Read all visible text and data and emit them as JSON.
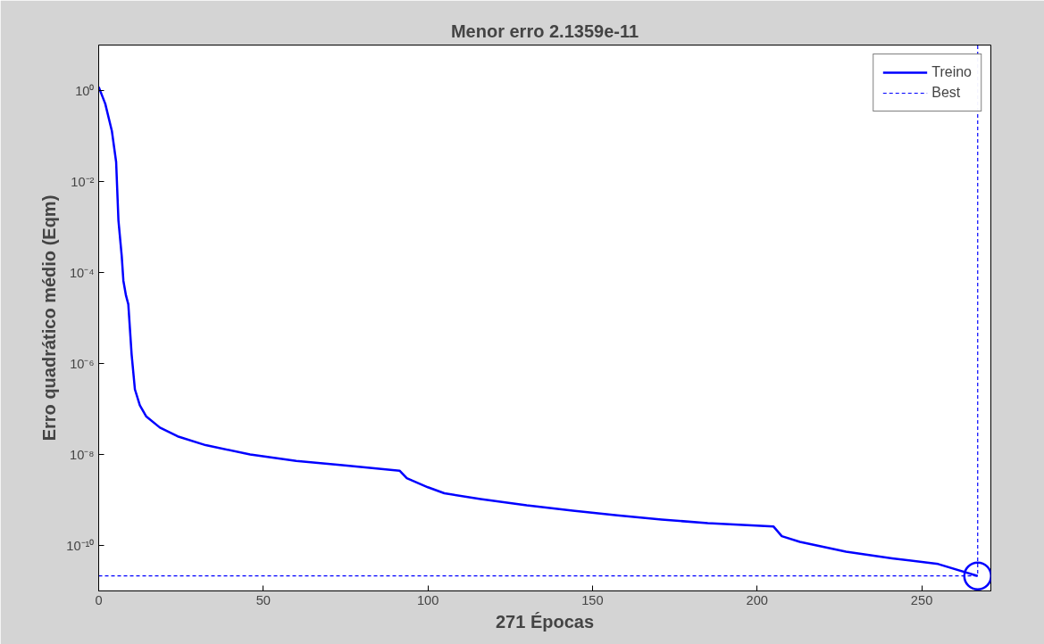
{
  "chart_data": {
    "type": "line",
    "title": "Menor erro 2.1359e-11",
    "xlabel": "271 Épocas",
    "ylabel": "Erro quadrático médio (Eqm)",
    "log": "y",
    "grid": false,
    "legend": "top right",
    "xlim": [
      0,
      271
    ],
    "xticks": [
      0,
      50,
      100,
      150,
      200,
      250
    ],
    "ylim": [
      1e-11,
      10
    ],
    "yticks": [
      {
        "value": 1e-10,
        "label": "10⁻¹⁰"
      },
      {
        "value": 1e-08,
        "label": "10⁻⁸"
      },
      {
        "value": 1e-06,
        "label": "10⁻⁶"
      },
      {
        "value": 0.0001,
        "label": "10⁻⁴"
      },
      {
        "value": 0.01,
        "label": "10⁻²"
      },
      {
        "value": 1,
        "label": "10⁰"
      }
    ],
    "series": [
      {
        "name": "Treino",
        "color": "#0000ff",
        "line_style": "solid",
        "marker": "none",
        "x": [
          0,
          2,
          4,
          5.3,
          6,
          7,
          7.5,
          8.3,
          9,
          10,
          11,
          12.5,
          14.4,
          18.6,
          24,
          32.5,
          46,
          60,
          74,
          91.4,
          93.6,
          100,
          105,
          116,
          130,
          144,
          157.5,
          171,
          185,
          205,
          207.5,
          213,
          227,
          241,
          255,
          267
        ],
        "values": [
          1.2,
          0.51,
          0.13,
          0.027,
          0.0014,
          0.00023,
          6.6e-05,
          3.1e-05,
          2e-05,
          1.6e-06,
          2.7e-07,
          1.2e-07,
          6.9e-08,
          3.9e-08,
          2.5e-08,
          1.6e-08,
          1e-08,
          7.2e-09,
          5.8e-09,
          4.4e-09,
          3e-09,
          1.9e-09,
          1.4e-09,
          1.05e-09,
          7.6e-10,
          5.8e-10,
          4.6e-10,
          3.7e-10,
          3.1e-10,
          2.6e-10,
          1.6e-10,
          1.2e-10,
          7.3e-11,
          5.2e-11,
          3.9e-11,
          2.1359e-11
        ]
      },
      {
        "name": "Best",
        "color": "#0000ff",
        "line_style": "dashed",
        "marker": "none",
        "x": [
          0,
          267,
          267
        ],
        "values": [
          2.1359e-11,
          2.1359e-11,
          10
        ]
      },
      {
        "type": "scatter",
        "color": "#0000ff",
        "marker": "circle",
        "x": [
          267
        ],
        "values": [
          2.1359e-11
        ]
      }
    ]
  }
}
